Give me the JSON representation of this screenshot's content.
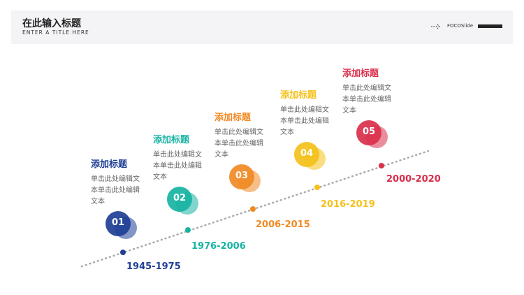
{
  "header": {
    "title": "在此输入标题",
    "subtitle": "ENTER A TITLE HERE",
    "brand": "FOCOSlide"
  },
  "items": [
    {
      "number": "01",
      "title": "添加标题",
      "text": "单击此处编辑文本单击此处编辑文本",
      "period": "1945-1975"
    },
    {
      "number": "02",
      "title": "添加标题",
      "text": "单击此处编辑文本单击此处编辑文本",
      "period": "1976-2006"
    },
    {
      "number": "03",
      "title": "添加标题",
      "text": "单击此处编辑文本单击此处编辑文本",
      "period": "2006-2015"
    },
    {
      "number": "04",
      "title": "添加标题",
      "text": "单击此处编辑文本单击此处编辑文本",
      "period": "2016-2019"
    },
    {
      "number": "05",
      "title": "添加标题",
      "text": "单击此处编辑文本单击此处编辑文本",
      "period": "2000-2020"
    }
  ]
}
